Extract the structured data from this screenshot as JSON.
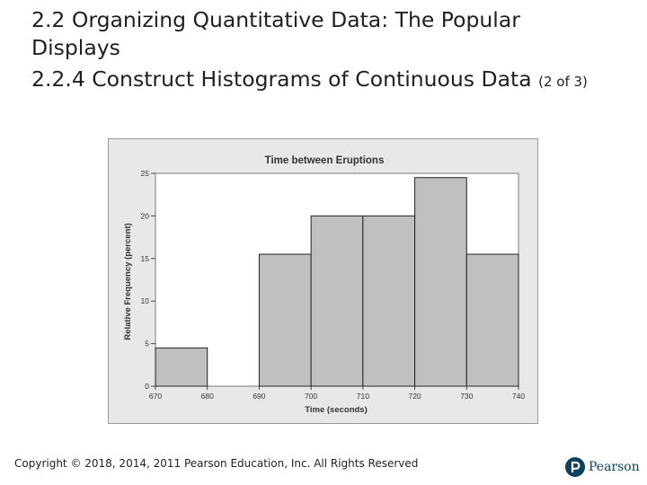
{
  "slide": {
    "title_line1": "2.2 Organizing Quantitative Data: The Popular",
    "title_line2": "Displays",
    "subtitle": "2.2.4 Construct Histograms of Continuous Data",
    "page_indicator": "(2 of 3)",
    "copyright": "Copyright © 2018, 2014, 2011 Pearson Education, Inc. All Rights Reserved",
    "logo_text": "Pearson",
    "logo_color": "#0d3f5e"
  },
  "chart_data": {
    "type": "bar",
    "title": "Time between Eruptions",
    "xlabel": "Time (seconds)",
    "ylabel": "Relative Frequency (percent)",
    "bins": [
      [
        670,
        680
      ],
      [
        680,
        690
      ],
      [
        690,
        700
      ],
      [
        700,
        710
      ],
      [
        710,
        720
      ],
      [
        720,
        730
      ],
      [
        730,
        740
      ]
    ],
    "values": [
      4.5,
      0,
      15.5,
      20,
      20,
      24.5,
      15.5
    ],
    "x_ticks": [
      "670",
      "680",
      "690",
      "700",
      "710",
      "720",
      "730",
      "740"
    ],
    "y_ticks": [
      "0",
      "5",
      "10",
      "15",
      "20",
      "25"
    ],
    "xlim": [
      670,
      740
    ],
    "ylim": [
      0,
      25
    ],
    "grid": false,
    "bar_color": "#c0c0c0",
    "plot_background": "#ffffff",
    "panel_background": "#e8e8e8"
  }
}
